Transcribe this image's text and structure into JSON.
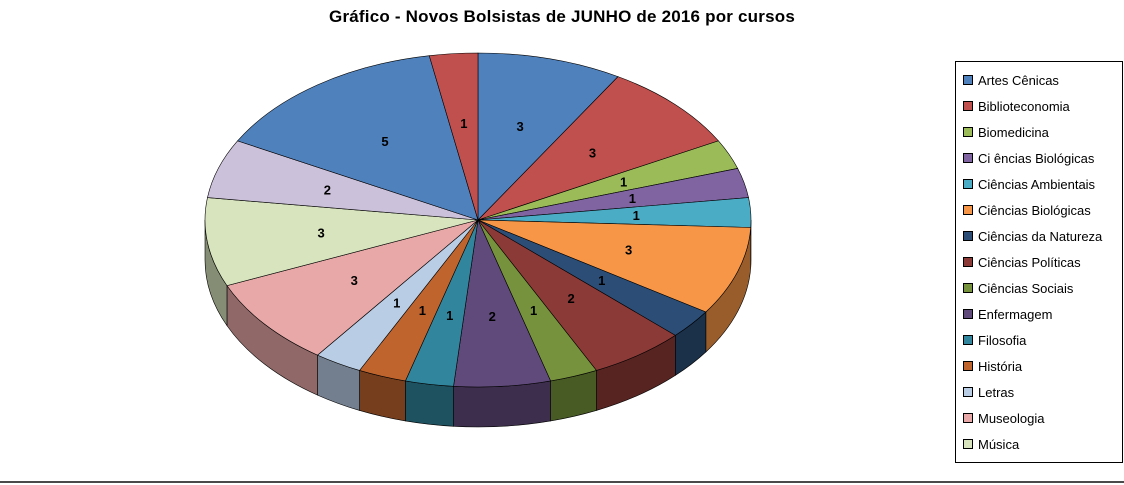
{
  "chart_data": {
    "type": "pie",
    "style": "3d",
    "title": "Gráfico - Novos Bolsistas de JUNHO de 2016 por cursos",
    "direction": "clockwise",
    "start_angle_deg": 0,
    "total": 35,
    "data_labels": "values",
    "legend_position": "right",
    "slices": [
      {
        "label": "Artes Cênicas",
        "value": 3,
        "color": "#4F81BD"
      },
      {
        "label": "Biblioteconomia",
        "value": 3,
        "color": "#C0504D"
      },
      {
        "label": "Biomedicina",
        "value": 1,
        "color": "#9BBB59"
      },
      {
        "label": "Ci ências Biológicas",
        "value": 1,
        "color": "#8064A2"
      },
      {
        "label": "Ciências Ambientais",
        "value": 1,
        "color": "#4BACC6"
      },
      {
        "label": "Ciências Biológicas",
        "value": 3,
        "color": "#F79646"
      },
      {
        "label": "Ciências da Natureza",
        "value": 1,
        "color": "#2C4D75"
      },
      {
        "label": "Ciências Políticas",
        "value": 2,
        "color": "#8C3A37"
      },
      {
        "label": "Ciências Sociais",
        "value": 1,
        "color": "#76923C"
      },
      {
        "label": "Enfermagem",
        "value": 2,
        "color": "#604A7B"
      },
      {
        "label": "Filosofia",
        "value": 1,
        "color": "#31859C"
      },
      {
        "label": "História",
        "value": 1,
        "color": "#C0642E"
      },
      {
        "label": "Letras",
        "value": 1,
        "color": "#B9CDE5"
      },
      {
        "label": "Museologia",
        "value": 3,
        "color": "#E8A8A8"
      },
      {
        "label": "Música",
        "value": 3,
        "color": "#D7E4BD"
      },
      {
        "label": "",
        "value": 2,
        "color": "#CCC1DA"
      },
      {
        "label": "",
        "value": 5,
        "color": "#4F81BD"
      },
      {
        "label": "",
        "value": 1,
        "color": "#C0504D"
      }
    ]
  }
}
